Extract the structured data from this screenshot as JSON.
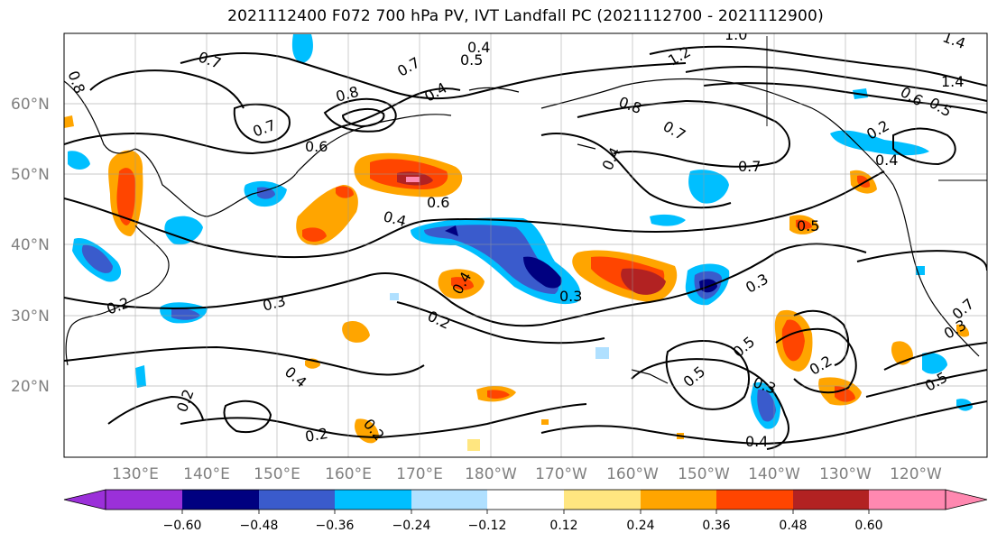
{
  "title": "2021112400 F072 700 hPa PV, IVT Landfall PC (2021112700 - 2021112900)",
  "lat_labels": [
    "60°N",
    "50°N",
    "40°N",
    "30°N",
    "20°N"
  ],
  "lon_labels": [
    "130°E",
    "140°E",
    "150°E",
    "160°E",
    "170°E",
    "180°W",
    "170°W",
    "160°W",
    "150°W",
    "140°W",
    "130°W",
    "120°W"
  ],
  "colorbar": {
    "ticks": [
      "−0.60",
      "−0.48",
      "−0.36",
      "−0.24",
      "−0.12",
      "0.12",
      "0.24",
      "0.36",
      "0.48",
      "0.60"
    ],
    "colors": [
      "#9b30d9",
      "#000080",
      "#3a5bcc",
      "#00bfff",
      "#b0e0ff",
      "#ffffff",
      "#ffe680",
      "#ffa500",
      "#ff4500",
      "#b22222",
      "#ff88b0"
    ]
  },
  "contour_labels": [
    "0.8",
    "0.7",
    "0.7",
    "0.8",
    "0.7",
    "0.4",
    "0.4",
    "0.5",
    "1.0",
    "1.2",
    "1.4",
    "1.4",
    "0.6",
    "0.5",
    "0.8",
    "0.4",
    "0.7",
    "0.2",
    "0.4",
    "0.7",
    "0.6",
    "0.4",
    "0.6",
    "0.5",
    "0.3",
    "0.3",
    "0.4",
    "0.2",
    "0.2",
    "0.3",
    "0.2",
    "0.2",
    "0.2",
    "0.4",
    "0.5",
    "0.5",
    "0.3",
    "0.2",
    "0.4",
    "0.5",
    "0.3",
    "0.7"
  ]
}
